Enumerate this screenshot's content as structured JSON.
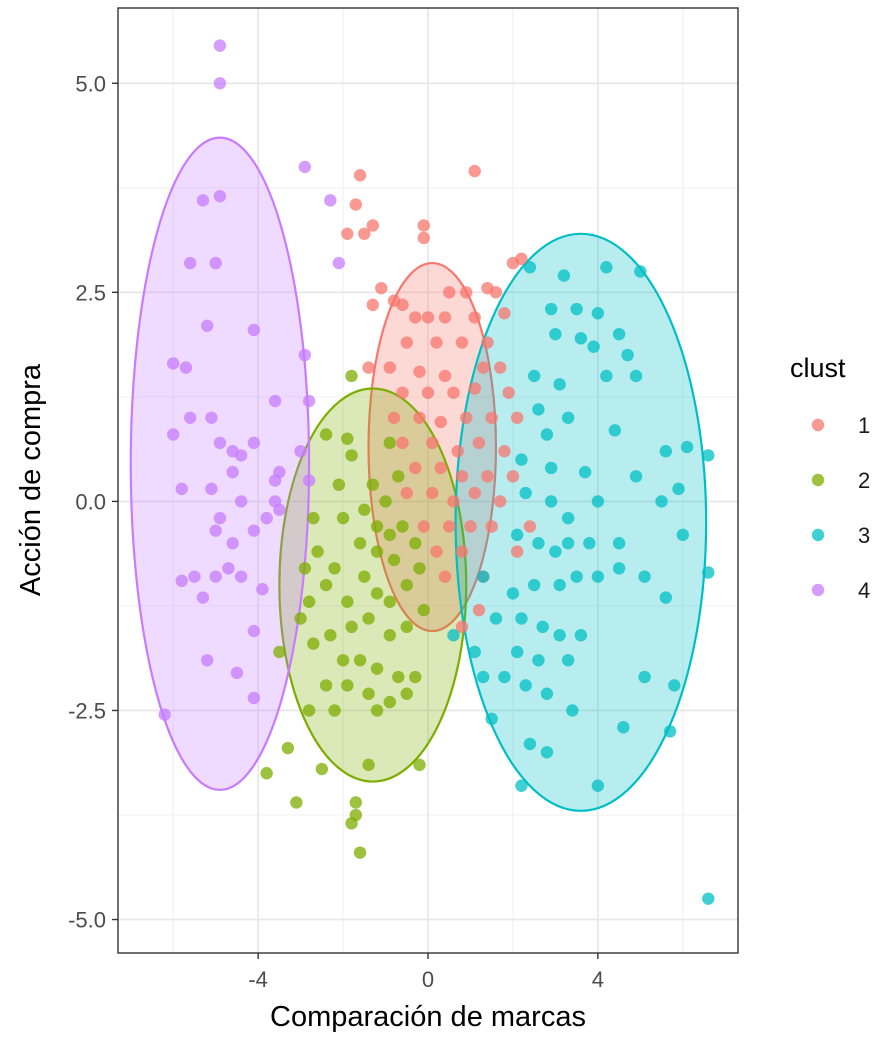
{
  "chart_data": {
    "type": "scatter",
    "xlabel": "Comparación de marcas",
    "ylabel": "Acción de compra",
    "xlim": [
      -7.3,
      7.3
    ],
    "ylim": [
      -5.4,
      5.9
    ],
    "xticks": [
      -4,
      0,
      4
    ],
    "yticks": [
      5.0,
      2.5,
      0.0,
      -2.5,
      -5.0
    ],
    "xtick_labels": [
      "-4",
      "0",
      "4"
    ],
    "ytick_labels": [
      "5.0",
      "2.5",
      "0.0",
      "-2.5",
      "-5.0"
    ],
    "grid": true,
    "legend": {
      "title": "clust",
      "placement": "right",
      "labels": [
        "1",
        "2",
        "3",
        "4"
      ]
    },
    "series": [
      {
        "name": "1",
        "color": "#F8766D",
        "ellipse": {
          "cx": 0.1,
          "cy": 0.65,
          "rx": 1.5,
          "ry": 2.2
        },
        "points": [
          [
            -1.6,
            3.9
          ],
          [
            1.1,
            3.95
          ],
          [
            -1.7,
            3.55
          ],
          [
            -1.3,
            3.3
          ],
          [
            -1.5,
            3.2
          ],
          [
            -1.9,
            3.2
          ],
          [
            -0.1,
            3.3
          ],
          [
            -0.1,
            3.15
          ],
          [
            2.0,
            2.85
          ],
          [
            2.2,
            2.9
          ],
          [
            -1.1,
            2.55
          ],
          [
            -1.3,
            2.35
          ],
          [
            -0.8,
            2.4
          ],
          [
            -0.6,
            2.35
          ],
          [
            0.5,
            2.5
          ],
          [
            0.9,
            2.5
          ],
          [
            1.4,
            2.55
          ],
          [
            1.6,
            2.5
          ],
          [
            -0.3,
            2.2
          ],
          [
            0.0,
            2.2
          ],
          [
            0.4,
            2.2
          ],
          [
            1.1,
            2.2
          ],
          [
            1.8,
            2.25
          ],
          [
            -0.5,
            1.9
          ],
          [
            0.2,
            1.9
          ],
          [
            0.8,
            1.9
          ],
          [
            1.4,
            1.9
          ],
          [
            -1.4,
            1.6
          ],
          [
            -0.9,
            1.6
          ],
          [
            -0.2,
            1.55
          ],
          [
            0.4,
            1.5
          ],
          [
            1.3,
            1.6
          ],
          [
            1.7,
            1.6
          ],
          [
            -0.6,
            1.3
          ],
          [
            0.0,
            1.3
          ],
          [
            0.6,
            1.3
          ],
          [
            1.1,
            1.35
          ],
          [
            1.9,
            1.3
          ],
          [
            -0.8,
            1.0
          ],
          [
            -0.2,
            1.0
          ],
          [
            0.3,
            0.95
          ],
          [
            0.9,
            1.0
          ],
          [
            1.5,
            1.0
          ],
          [
            2.1,
            1.0
          ],
          [
            -0.6,
            0.7
          ],
          [
            0.1,
            0.7
          ],
          [
            0.7,
            0.6
          ],
          [
            1.2,
            0.7
          ],
          [
            1.8,
            0.6
          ],
          [
            -0.3,
            0.4
          ],
          [
            0.3,
            0.4
          ],
          [
            0.8,
            0.3
          ],
          [
            1.4,
            0.3
          ],
          [
            2.0,
            0.3
          ],
          [
            -0.5,
            0.1
          ],
          [
            0.1,
            0.1
          ],
          [
            0.6,
            0.0
          ],
          [
            1.1,
            0.1
          ],
          [
            1.7,
            0.0
          ],
          [
            -0.1,
            -0.3
          ],
          [
            0.5,
            -0.3
          ],
          [
            1.0,
            -0.3
          ],
          [
            1.5,
            -0.3
          ],
          [
            0.2,
            -0.6
          ],
          [
            0.8,
            -0.6
          ],
          [
            1.3,
            -0.9
          ],
          [
            0.4,
            -0.9
          ],
          [
            1.2,
            -1.3
          ],
          [
            0.8,
            -1.5
          ],
          [
            2.1,
            -0.6
          ],
          [
            2.4,
            -0.3
          ]
        ]
      },
      {
        "name": "2",
        "color": "#7CAE00",
        "ellipse": {
          "cx": -1.3,
          "cy": -1.0,
          "rx": 2.2,
          "ry": 2.35
        },
        "points": [
          [
            -1.8,
            1.5
          ],
          [
            -1.9,
            0.75
          ],
          [
            -1.8,
            0.55
          ],
          [
            -0.9,
            0.7
          ],
          [
            -0.7,
            0.3
          ],
          [
            -1.3,
            0.2
          ],
          [
            -1.0,
            0.0
          ],
          [
            -1.5,
            -0.1
          ],
          [
            -1.2,
            -0.3
          ],
          [
            -0.9,
            -0.4
          ],
          [
            -0.6,
            -0.3
          ],
          [
            -0.3,
            -0.5
          ],
          [
            -1.6,
            -0.5
          ],
          [
            -1.2,
            -0.6
          ],
          [
            -0.8,
            -0.7
          ],
          [
            -2.7,
            -0.2
          ],
          [
            -2.6,
            -0.6
          ],
          [
            -2.2,
            -0.8
          ],
          [
            -2.9,
            -0.8
          ],
          [
            -2.8,
            -1.2
          ],
          [
            -2.4,
            -1.0
          ],
          [
            -1.9,
            -1.2
          ],
          [
            -1.5,
            -0.9
          ],
          [
            -1.2,
            -1.1
          ],
          [
            -0.9,
            -1.2
          ],
          [
            -0.5,
            -1.0
          ],
          [
            -0.2,
            -0.8
          ],
          [
            -0.1,
            -1.3
          ],
          [
            -0.5,
            -1.5
          ],
          [
            -0.9,
            -1.6
          ],
          [
            -1.4,
            -1.4
          ],
          [
            -1.8,
            -1.5
          ],
          [
            -2.3,
            -1.6
          ],
          [
            -2.7,
            -1.7
          ],
          [
            -3.0,
            -1.4
          ],
          [
            -3.5,
            -1.8
          ],
          [
            -2.0,
            -1.9
          ],
          [
            -1.6,
            -1.9
          ],
          [
            -1.2,
            -2.0
          ],
          [
            -0.7,
            -2.1
          ],
          [
            -0.3,
            -2.1
          ],
          [
            -2.4,
            -2.2
          ],
          [
            -1.9,
            -2.2
          ],
          [
            -1.4,
            -2.3
          ],
          [
            -0.9,
            -2.4
          ],
          [
            -0.5,
            -2.3
          ],
          [
            -2.8,
            -2.5
          ],
          [
            -2.2,
            -2.5
          ],
          [
            -1.2,
            -2.5
          ],
          [
            -3.3,
            -2.95
          ],
          [
            -2.5,
            -3.2
          ],
          [
            -1.4,
            -3.15
          ],
          [
            -0.2,
            -3.15
          ],
          [
            -3.8,
            -3.25
          ],
          [
            -3.1,
            -3.6
          ],
          [
            -1.7,
            -3.6
          ],
          [
            -1.7,
            -3.75
          ],
          [
            -1.8,
            -3.85
          ],
          [
            -1.6,
            -4.2
          ],
          [
            -2.1,
            0.2
          ],
          [
            -2.4,
            0.8
          ],
          [
            -2.0,
            -0.2
          ]
        ]
      },
      {
        "name": "3",
        "color": "#00BFC4",
        "ellipse": {
          "cx": 3.6,
          "cy": -0.25,
          "rx": 2.95,
          "ry": 3.45
        },
        "points": [
          [
            2.4,
            2.8
          ],
          [
            3.2,
            2.7
          ],
          [
            4.2,
            2.8
          ],
          [
            5.0,
            2.75
          ],
          [
            2.9,
            2.3
          ],
          [
            3.5,
            2.3
          ],
          [
            4.0,
            2.25
          ],
          [
            3.0,
            2.0
          ],
          [
            3.6,
            1.95
          ],
          [
            4.5,
            2.0
          ],
          [
            3.9,
            1.85
          ],
          [
            4.7,
            1.75
          ],
          [
            2.5,
            1.5
          ],
          [
            3.1,
            1.4
          ],
          [
            4.2,
            1.5
          ],
          [
            4.9,
            1.5
          ],
          [
            2.6,
            1.1
          ],
          [
            3.3,
            1.0
          ],
          [
            2.8,
            0.8
          ],
          [
            4.4,
            0.85
          ],
          [
            5.6,
            0.6
          ],
          [
            6.1,
            0.65
          ],
          [
            6.6,
            0.55
          ],
          [
            2.2,
            0.5
          ],
          [
            2.9,
            0.4
          ],
          [
            3.7,
            0.35
          ],
          [
            2.3,
            0.1
          ],
          [
            2.9,
            0.0
          ],
          [
            3.3,
            -0.2
          ],
          [
            4.0,
            0.0
          ],
          [
            4.9,
            0.3
          ],
          [
            5.5,
            0.0
          ],
          [
            5.9,
            0.15
          ],
          [
            2.1,
            -0.4
          ],
          [
            2.6,
            -0.5
          ],
          [
            3.0,
            -0.6
          ],
          [
            3.3,
            -0.5
          ],
          [
            3.8,
            -0.5
          ],
          [
            4.5,
            -0.5
          ],
          [
            6.0,
            -0.4
          ],
          [
            1.3,
            -0.9
          ],
          [
            2.0,
            -1.1
          ],
          [
            2.5,
            -1.0
          ],
          [
            3.1,
            -1.0
          ],
          [
            3.5,
            -0.9
          ],
          [
            4.0,
            -0.9
          ],
          [
            4.5,
            -0.8
          ],
          [
            5.1,
            -0.9
          ],
          [
            6.6,
            -0.85
          ],
          [
            5.6,
            -1.15
          ],
          [
            1.6,
            -1.4
          ],
          [
            2.2,
            -1.4
          ],
          [
            2.7,
            -1.5
          ],
          [
            3.1,
            -1.6
          ],
          [
            3.6,
            -1.6
          ],
          [
            0.6,
            -1.6
          ],
          [
            1.1,
            -1.8
          ],
          [
            2.1,
            -1.8
          ],
          [
            2.6,
            -1.9
          ],
          [
            3.3,
            -1.9
          ],
          [
            1.3,
            -2.1
          ],
          [
            1.8,
            -2.1
          ],
          [
            2.3,
            -2.2
          ],
          [
            2.8,
            -2.3
          ],
          [
            5.1,
            -2.1
          ],
          [
            5.8,
            -2.2
          ],
          [
            1.5,
            -2.6
          ],
          [
            3.4,
            -2.5
          ],
          [
            2.4,
            -2.9
          ],
          [
            2.8,
            -3.0
          ],
          [
            4.6,
            -2.7
          ],
          [
            5.7,
            -2.75
          ],
          [
            2.2,
            -3.4
          ],
          [
            4.0,
            -3.4
          ],
          [
            6.6,
            -4.75
          ]
        ]
      },
      {
        "name": "4",
        "color": "#C77CFF",
        "ellipse": {
          "cx": -4.9,
          "cy": 0.45,
          "rx": 2.1,
          "ry": 3.9
        },
        "points": [
          [
            -4.9,
            5.45
          ],
          [
            -4.9,
            5.0
          ],
          [
            -2.9,
            4.0
          ],
          [
            -5.3,
            3.6
          ],
          [
            -4.9,
            3.65
          ],
          [
            -2.3,
            3.6
          ],
          [
            -5.6,
            2.85
          ],
          [
            -5.0,
            2.85
          ],
          [
            -2.1,
            2.85
          ],
          [
            -5.2,
            2.1
          ],
          [
            -4.1,
            2.05
          ],
          [
            -6.0,
            1.65
          ],
          [
            -5.7,
            1.6
          ],
          [
            -2.9,
            1.75
          ],
          [
            -5.1,
            1.0
          ],
          [
            -5.6,
            1.0
          ],
          [
            -3.6,
            1.2
          ],
          [
            -2.8,
            1.2
          ],
          [
            -4.6,
            0.6
          ],
          [
            -6.0,
            0.8
          ],
          [
            -4.9,
            0.7
          ],
          [
            -4.1,
            0.7
          ],
          [
            -3.0,
            0.6
          ],
          [
            -3.5,
            0.35
          ],
          [
            -4.4,
            0.55
          ],
          [
            -4.6,
            0.35
          ],
          [
            -3.6,
            0.25
          ],
          [
            -2.8,
            0.25
          ],
          [
            -5.1,
            0.15
          ],
          [
            -5.8,
            0.15
          ],
          [
            -4.4,
            0.0
          ],
          [
            -3.6,
            0.0
          ],
          [
            -4.9,
            -0.2
          ],
          [
            -5.0,
            -0.35
          ],
          [
            -4.1,
            -0.35
          ],
          [
            -3.8,
            -0.2
          ],
          [
            -4.6,
            -0.5
          ],
          [
            -5.8,
            -0.95
          ],
          [
            -5.5,
            -0.9
          ],
          [
            -4.7,
            -0.8
          ],
          [
            -4.4,
            -0.9
          ],
          [
            -5.3,
            -1.15
          ],
          [
            -3.9,
            -1.05
          ],
          [
            -4.1,
            -1.55
          ],
          [
            -5.2,
            -1.9
          ],
          [
            -4.5,
            -2.05
          ],
          [
            -6.2,
            -2.55
          ],
          [
            -4.1,
            -2.35
          ],
          [
            -5.0,
            -0.9
          ],
          [
            -3.5,
            -0.1
          ]
        ]
      }
    ]
  }
}
